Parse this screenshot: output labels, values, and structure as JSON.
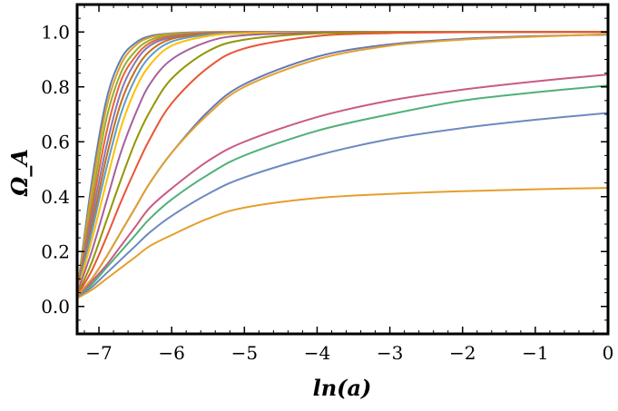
{
  "chart_data": {
    "type": "line",
    "xlabel": "ln(a)",
    "ylabel": "Ω_A",
    "xlim": [
      -7.3,
      0
    ],
    "ylim": [
      -0.1,
      1.1
    ],
    "xticks": [
      "-7",
      "-6",
      "-5",
      "-4",
      "-3",
      "-2",
      "-1",
      "0"
    ],
    "yticks": [
      "0.0",
      "0.2",
      "0.4",
      "0.6",
      "0.8",
      "1.0"
    ],
    "grid": false,
    "legend": "none",
    "frame": "box",
    "series": [
      {
        "color": "#5e81b5",
        "x": [
          -7.3,
          -7.1,
          -6.9,
          -6.7,
          -6.5,
          -6.3,
          -6.0,
          -5.5,
          -5.0,
          -4.0,
          -3.0,
          -2.0,
          -1.0,
          0.0
        ],
        "y": [
          0.05,
          0.45,
          0.75,
          0.9,
          0.96,
          0.985,
          0.995,
          1.0,
          1.0,
          1.0,
          1.0,
          1.0,
          1.0,
          1.0
        ]
      },
      {
        "color": "#e19c24",
        "x": [
          -7.3,
          -7.1,
          -6.9,
          -6.7,
          -6.5,
          -6.3,
          -6.0,
          -5.5,
          -5.0,
          -4.0,
          -3.0,
          -2.0,
          -1.0,
          0.0
        ],
        "y": [
          0.05,
          0.42,
          0.72,
          0.88,
          0.95,
          0.98,
          0.993,
          0.999,
          1.0,
          1.0,
          1.0,
          1.0,
          1.0,
          1.0
        ]
      },
      {
        "color": "#8fb032",
        "x": [
          -7.3,
          -7.1,
          -6.9,
          -6.7,
          -6.5,
          -6.3,
          -6.0,
          -5.5,
          -5.0,
          -4.0,
          -3.0,
          -2.0,
          -1.0,
          0.0
        ],
        "y": [
          0.05,
          0.38,
          0.68,
          0.85,
          0.93,
          0.97,
          0.99,
          0.998,
          1.0,
          1.0,
          1.0,
          1.0,
          1.0,
          1.0
        ]
      },
      {
        "color": "#eb6235",
        "x": [
          -7.3,
          -7.1,
          -6.9,
          -6.7,
          -6.5,
          -6.3,
          -6.0,
          -5.5,
          -5.0,
          -4.0,
          -3.0,
          -2.0,
          -1.0,
          0.0
        ],
        "y": [
          0.05,
          0.35,
          0.63,
          0.82,
          0.91,
          0.96,
          0.985,
          0.997,
          1.0,
          1.0,
          1.0,
          1.0,
          1.0,
          1.0
        ]
      },
      {
        "color": "#8778b3",
        "x": [
          -7.3,
          -7.1,
          -6.9,
          -6.7,
          -6.5,
          -6.3,
          -6.0,
          -5.5,
          -5.0,
          -4.0,
          -3.0,
          -2.0,
          -1.0,
          0.0
        ],
        "y": [
          0.05,
          0.32,
          0.58,
          0.78,
          0.89,
          0.95,
          0.98,
          0.995,
          0.999,
          1.0,
          1.0,
          1.0,
          1.0,
          1.0
        ]
      },
      {
        "color": "#c56e1a",
        "x": [
          -7.3,
          -7.1,
          -6.9,
          -6.7,
          -6.5,
          -6.3,
          -6.0,
          -5.5,
          -5.0,
          -4.0,
          -3.0,
          -2.0,
          -1.0,
          0.0
        ],
        "y": [
          0.05,
          0.29,
          0.54,
          0.74,
          0.86,
          0.93,
          0.975,
          0.993,
          0.998,
          1.0,
          1.0,
          1.0,
          1.0,
          1.0
        ]
      },
      {
        "color": "#5d9ec7",
        "x": [
          -7.3,
          -7.1,
          -6.9,
          -6.7,
          -6.5,
          -6.3,
          -6.0,
          -5.5,
          -5.0,
          -4.0,
          -3.0,
          -2.0,
          -1.0,
          0.0
        ],
        "y": [
          0.05,
          0.27,
          0.5,
          0.7,
          0.83,
          0.91,
          0.965,
          0.99,
          0.997,
          1.0,
          1.0,
          1.0,
          1.0,
          1.0
        ]
      },
      {
        "color": "#ffbf00",
        "x": [
          -7.3,
          -7.1,
          -6.9,
          -6.7,
          -6.5,
          -6.3,
          -6.0,
          -5.5,
          -5.0,
          -4.0,
          -3.0,
          -2.0,
          -1.0,
          0.0
        ],
        "y": [
          0.05,
          0.24,
          0.45,
          0.65,
          0.79,
          0.88,
          0.95,
          0.985,
          0.995,
          0.999,
          1.0,
          1.0,
          1.0,
          1.0
        ]
      },
      {
        "color": "#a5609d",
        "x": [
          -7.3,
          -7.1,
          -6.9,
          -6.7,
          -6.5,
          -6.3,
          -6.0,
          -5.5,
          -5.0,
          -4.0,
          -3.0,
          -2.0,
          -1.0,
          0.0
        ],
        "y": [
          0.05,
          0.2,
          0.38,
          0.56,
          0.7,
          0.81,
          0.9,
          0.965,
          0.988,
          0.998,
          1.0,
          1.0,
          1.0,
          1.0
        ]
      },
      {
        "color": "#929600",
        "x": [
          -7.3,
          -7.1,
          -6.9,
          -6.7,
          -6.5,
          -6.3,
          -6.0,
          -5.5,
          -5.0,
          -4.0,
          -3.0,
          -2.0,
          -1.0,
          0.0
        ],
        "y": [
          0.04,
          0.16,
          0.31,
          0.46,
          0.6,
          0.71,
          0.83,
          0.93,
          0.972,
          0.995,
          0.999,
          1.0,
          1.0,
          1.0
        ]
      },
      {
        "color": "#e95536",
        "x": [
          -7.3,
          -7.1,
          -6.9,
          -6.7,
          -6.5,
          -6.3,
          -6.0,
          -5.5,
          -5.0,
          -4.0,
          -3.0,
          -2.0,
          -1.0,
          0.0
        ],
        "y": [
          0.04,
          0.13,
          0.25,
          0.38,
          0.5,
          0.61,
          0.74,
          0.87,
          0.94,
          0.985,
          0.996,
          0.999,
          1.0,
          1.0
        ]
      },
      {
        "color": "#6679b2",
        "x": [
          -7.3,
          -7.1,
          -6.9,
          -6.7,
          -6.5,
          -6.3,
          -6.0,
          -5.5,
          -5.0,
          -4.0,
          -3.0,
          -2.0,
          -1.0,
          0.0
        ],
        "y": [
          0.04,
          0.1,
          0.18,
          0.27,
          0.36,
          0.45,
          0.56,
          0.71,
          0.81,
          0.91,
          0.955,
          0.975,
          0.985,
          0.99
        ]
      },
      {
        "color": "#e1a031",
        "x": [
          -7.3,
          -7.1,
          -6.9,
          -6.7,
          -6.5,
          -6.3,
          -6.0,
          -5.5,
          -5.0,
          -4.0,
          -3.0,
          -2.0,
          -1.0,
          0.0
        ],
        "y": [
          0.04,
          0.1,
          0.18,
          0.27,
          0.36,
          0.45,
          0.56,
          0.7,
          0.8,
          0.9,
          0.95,
          0.972,
          0.983,
          0.992
        ]
      },
      {
        "color": "#c85a83",
        "x": [
          -7.3,
          -7.1,
          -6.9,
          -6.7,
          -6.5,
          -6.3,
          -6.0,
          -5.5,
          -5.0,
          -4.0,
          -3.0,
          -2.0,
          -1.0,
          0.0
        ],
        "y": [
          0.03,
          0.09,
          0.15,
          0.22,
          0.29,
          0.36,
          0.43,
          0.53,
          0.6,
          0.69,
          0.75,
          0.79,
          0.82,
          0.845
        ]
      },
      {
        "color": "#4fb076",
        "x": [
          -7.3,
          -7.1,
          -6.9,
          -6.7,
          -6.5,
          -6.3,
          -6.0,
          -5.5,
          -5.0,
          -4.0,
          -3.0,
          -2.0,
          -1.0,
          0.0
        ],
        "y": [
          0.03,
          0.08,
          0.14,
          0.2,
          0.26,
          0.32,
          0.39,
          0.48,
          0.55,
          0.64,
          0.7,
          0.75,
          0.78,
          0.805
        ]
      },
      {
        "color": "#6c89c0",
        "x": [
          -7.3,
          -7.1,
          -6.9,
          -6.7,
          -6.5,
          -6.3,
          -6.0,
          -5.5,
          -5.0,
          -4.0,
          -3.0,
          -2.0,
          -1.0,
          0.0
        ],
        "y": [
          0.03,
          0.07,
          0.12,
          0.17,
          0.22,
          0.27,
          0.33,
          0.41,
          0.47,
          0.55,
          0.61,
          0.65,
          0.68,
          0.705
        ]
      },
      {
        "color": "#e59f2a",
        "x": [
          -7.3,
          -7.1,
          -6.9,
          -6.7,
          -6.5,
          -6.3,
          -6.0,
          -5.5,
          -5.0,
          -4.0,
          -3.0,
          -2.0,
          -1.0,
          0.0
        ],
        "y": [
          0.03,
          0.06,
          0.1,
          0.14,
          0.18,
          0.22,
          0.26,
          0.32,
          0.36,
          0.395,
          0.41,
          0.42,
          0.427,
          0.432
        ]
      }
    ]
  }
}
